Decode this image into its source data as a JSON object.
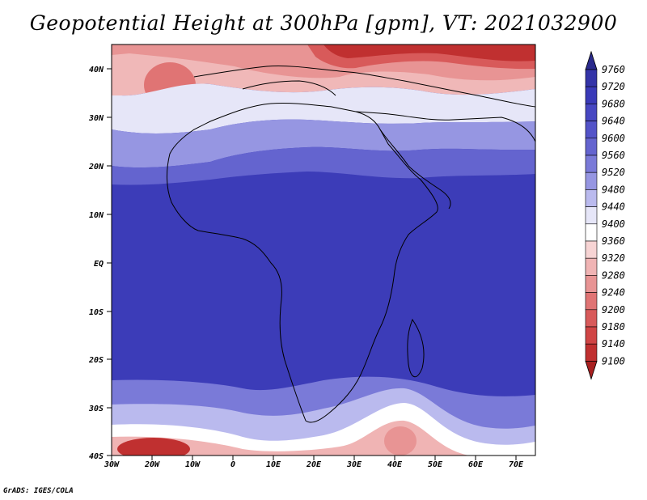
{
  "title": "Geopotential Height at 300hPa [gpm], VT: 2021032900",
  "credit": "GrADS: IGES/COLA",
  "map": {
    "lat_ticks": [
      "40N",
      "30N",
      "20N",
      "10N",
      "EQ",
      "10S",
      "20S",
      "30S",
      "40S"
    ],
    "lon_ticks": [
      "30W",
      "20W",
      "10W",
      "0",
      "10E",
      "20E",
      "30E",
      "40E",
      "50E",
      "60E",
      "70E"
    ],
    "lat_range": [
      -40,
      45
    ],
    "lon_range": [
      -30,
      75
    ],
    "field": "Geopotential height at 300hPa",
    "units": "gpm"
  },
  "colorbar": {
    "levels": [
      "9760",
      "9720",
      "9680",
      "9640",
      "9600",
      "9560",
      "9520",
      "9480",
      "9440",
      "9400",
      "9360",
      "9320",
      "9280",
      "9240",
      "9200",
      "9180",
      "9140",
      "9100"
    ],
    "colors": [
      "#2a2a8c",
      "#3434a8",
      "#3a3ab8",
      "#4747c2",
      "#5353c8",
      "#6464cf",
      "#7a7ad8",
      "#9696e2",
      "#babaee",
      "#e6e6f8",
      "#ffffff",
      "#f7d4d4",
      "#f0b4b4",
      "#e89494",
      "#e07474",
      "#d85a5a",
      "#d04545",
      "#c03030",
      "#a82020"
    ]
  },
  "colors": {
    "deep_blue": "#3a3ab8",
    "mid_blue": "#4a4ac4",
    "light_blue": "#8a8ad8",
    "white": "#ffffff",
    "light_red": "#f2b8b8",
    "red": "#d85050",
    "dark_red": "#a82020"
  }
}
